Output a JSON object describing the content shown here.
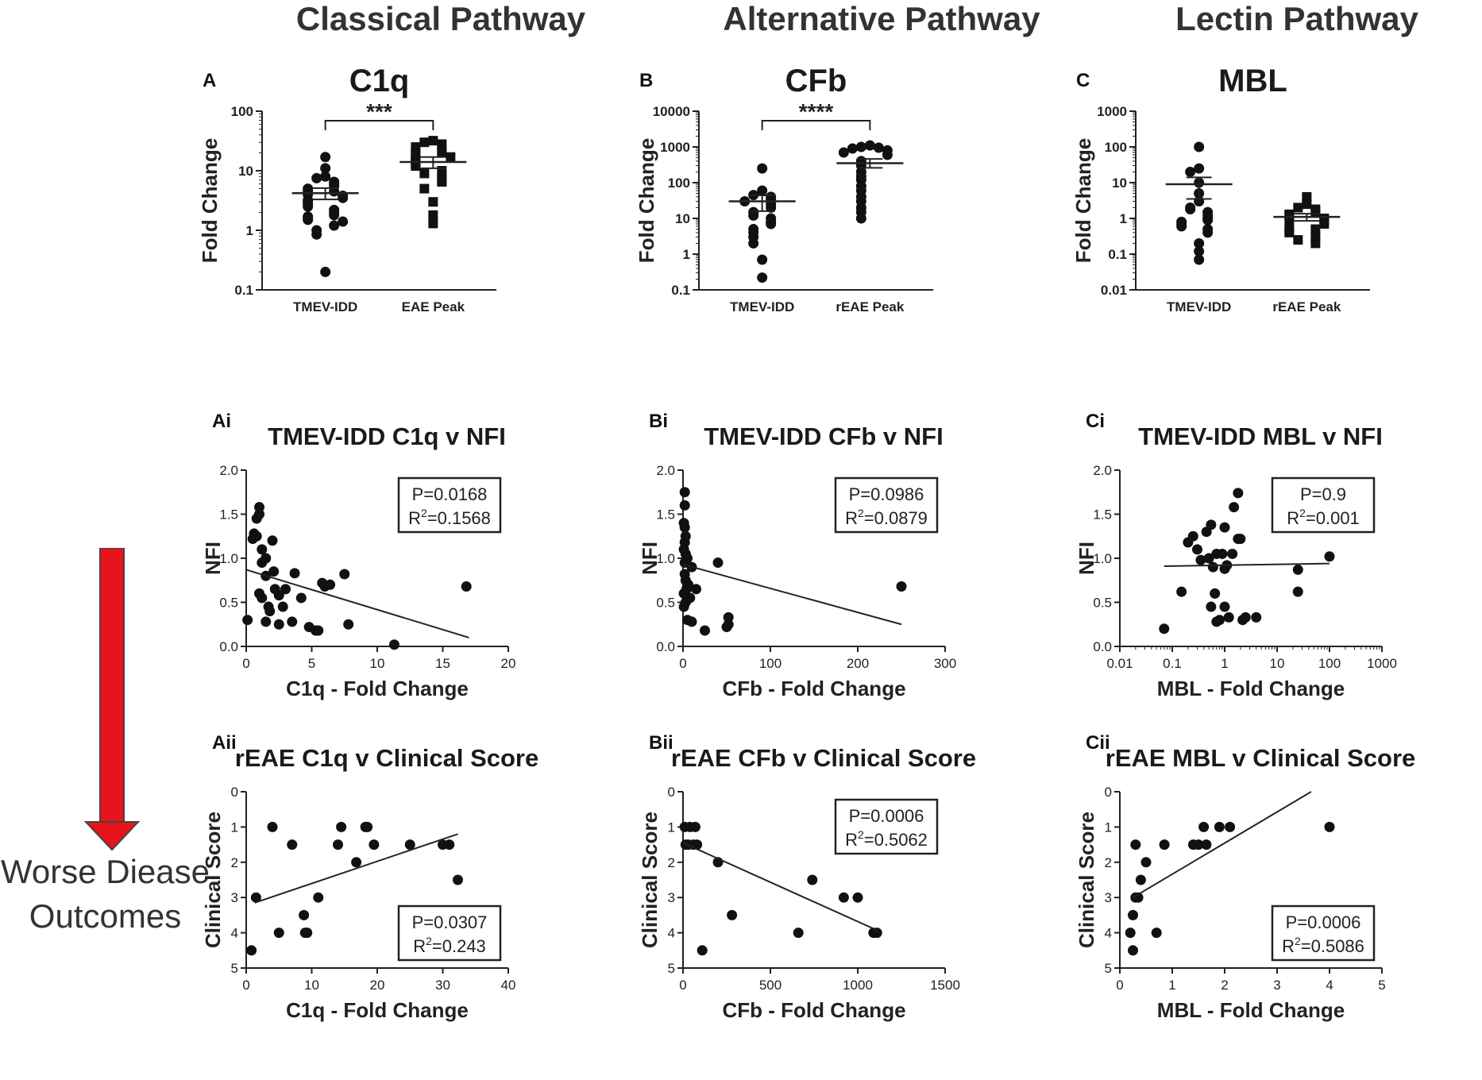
{
  "headers": {
    "classical": "Classical Pathway",
    "alternative": "Alternative Pathway",
    "lectin": "Lectin Pathway"
  },
  "side": {
    "line1": "Worse Diease",
    "line2": "Outcomes",
    "arrow_color": "#e8141b"
  },
  "chart_data": [
    {
      "id": "A",
      "type": "scatter",
      "subtype": "dot-plot-log",
      "panel_label": "A",
      "title": "C1q",
      "ylabel": "Fold Change",
      "xlabel": "",
      "yscale": "log",
      "ylim": [
        0.1,
        100
      ],
      "yticks": [
        "0.1",
        "1",
        "10",
        "100"
      ],
      "categories": [
        "TMEV-IDD",
        "EAE Peak"
      ],
      "significance": "***",
      "groups": [
        {
          "name": "TMEV-IDD",
          "marker": "circle",
          "mean": 4.2,
          "sem_low": 3.3,
          "sem_high": 5.1,
          "values": [
            17,
            11,
            8,
            7.5,
            6.5,
            6,
            5.5,
            5,
            4.5,
            4.5,
            4,
            3.8,
            3.5,
            3.2,
            3,
            2.8,
            2.5,
            2.2,
            2,
            1.8,
            1.7,
            1.6,
            1.5,
            1.4,
            1.2,
            1,
            0.85,
            0.2
          ]
        },
        {
          "name": "EAE Peak",
          "marker": "square",
          "mean": 14,
          "sem_low": 11,
          "sem_high": 17,
          "values": [
            32,
            30,
            28,
            25,
            22,
            20,
            19,
            18,
            17,
            15,
            14,
            13,
            12,
            10,
            9,
            8,
            7,
            6.5,
            5,
            3,
            1.8,
            1.3
          ]
        }
      ]
    },
    {
      "id": "B",
      "type": "scatter",
      "subtype": "dot-plot-log",
      "panel_label": "B",
      "title": "CFb",
      "ylabel": "Fold Change",
      "xlabel": "",
      "yscale": "log",
      "ylim": [
        0.1,
        10000
      ],
      "yticks": [
        "0.1",
        "1",
        "10",
        "100",
        "1000",
        "10000"
      ],
      "categories": [
        "TMEV-IDD",
        "rEAE Peak"
      ],
      "significance": "****",
      "groups": [
        {
          "name": "TMEV-IDD",
          "marker": "circle",
          "mean": 30,
          "sem_low": 16,
          "sem_high": 44,
          "values": [
            250,
            60,
            45,
            40,
            35,
            30,
            25,
            20,
            15,
            12,
            10,
            8,
            7,
            5,
            4,
            3,
            2,
            0.7,
            0.22
          ]
        },
        {
          "name": "rEAE Peak",
          "marker": "circle",
          "mean": 350,
          "sem_low": 260,
          "sem_high": 460,
          "values": [
            1100,
            1000,
            950,
            900,
            800,
            700,
            600,
            400,
            300,
            200,
            150,
            120,
            80,
            60,
            40,
            30,
            20,
            15,
            10
          ]
        }
      ]
    },
    {
      "id": "C",
      "type": "scatter",
      "subtype": "dot-plot-log",
      "panel_label": "C",
      "title": "MBL",
      "ylabel": "Fold Change",
      "xlabel": "",
      "yscale": "log",
      "ylim": [
        0.01,
        1000
      ],
      "yticks": [
        "0.01",
        "0.1",
        "1",
        "10",
        "100",
        "1000"
      ],
      "categories": [
        "TMEV-IDD",
        "rEAE Peak"
      ],
      "significance": "",
      "groups": [
        {
          "name": "TMEV-IDD",
          "marker": "circle",
          "mean": 9,
          "sem_low": 3.5,
          "sem_high": 14,
          "values": [
            100,
            25,
            20,
            10,
            5,
            3,
            2,
            1.8,
            1.5,
            1.2,
            1,
            0.9,
            0.8,
            0.7,
            0.6,
            0.5,
            0.4,
            0.2,
            0.12,
            0.07
          ]
        },
        {
          "name": "rEAE Peak",
          "marker": "square",
          "mean": 1.1,
          "sem_low": 0.85,
          "sem_high": 1.35,
          "values": [
            4,
            2.5,
            2,
            1.8,
            1.5,
            1.3,
            1.2,
            1.1,
            1,
            0.9,
            0.8,
            0.7,
            0.6,
            0.5,
            0.45,
            0.4,
            0.3,
            0.25,
            0.2
          ]
        }
      ]
    },
    {
      "id": "Ai",
      "type": "scatter",
      "panel_label": "Ai",
      "title": "TMEV-IDD C1q v NFI",
      "xlabel": "C1q - Fold Change",
      "ylabel": "NFI",
      "xscale": "linear",
      "xlim": [
        0,
        20
      ],
      "xticks": [
        "0",
        "5",
        "10",
        "15",
        "20"
      ],
      "ylim": [
        0,
        2.0
      ],
      "yticks": [
        "0.0",
        "0.5",
        "1.0",
        "1.5",
        "2.0"
      ],
      "yreversed": false,
      "stat_p": "P=0.0168",
      "stat_r_prefix": "R",
      "stat_r_sup": "2",
      "stat_r_value": "=0.1568",
      "stat_position": "top-right",
      "fit": {
        "x": [
          0,
          17
        ],
        "y": [
          0.87,
          0.1
        ]
      },
      "points": [
        [
          0.5,
          1.22
        ],
        [
          0.6,
          1.28
        ],
        [
          0.8,
          1.25
        ],
        [
          0.8,
          1.45
        ],
        [
          1.0,
          1.58
        ],
        [
          1.0,
          1.5
        ],
        [
          1.2,
          1.1
        ],
        [
          1.2,
          0.95
        ],
        [
          1.0,
          0.6
        ],
        [
          1.2,
          0.55
        ],
        [
          1.5,
          0.8
        ],
        [
          1.5,
          1.0
        ],
        [
          1.7,
          0.45
        ],
        [
          1.8,
          0.4
        ],
        [
          1.5,
          0.28
        ],
        [
          2.0,
          1.2
        ],
        [
          2.1,
          0.85
        ],
        [
          2.2,
          0.65
        ],
        [
          2.5,
          0.58
        ],
        [
          2.5,
          0.25
        ],
        [
          3.0,
          0.65
        ],
        [
          3.5,
          0.28
        ],
        [
          3.7,
          0.83
        ],
        [
          4.2,
          0.55
        ],
        [
          4.8,
          0.22
        ],
        [
          5.3,
          0.18
        ],
        [
          5.5,
          0.18
        ],
        [
          5.8,
          0.72
        ],
        [
          6.0,
          0.68
        ],
        [
          6.4,
          0.7
        ],
        [
          7.5,
          0.82
        ],
        [
          7.8,
          0.25
        ],
        [
          11.3,
          0.02
        ],
        [
          16.8,
          0.68
        ],
        [
          0.1,
          0.3
        ],
        [
          2.8,
          0.45
        ]
      ]
    },
    {
      "id": "Bi",
      "type": "scatter",
      "panel_label": "Bi",
      "title": "TMEV-IDD CFb v NFI",
      "xlabel": "CFb - Fold Change",
      "ylabel": "NFI",
      "xscale": "linear",
      "xlim": [
        0,
        300
      ],
      "xticks": [
        "0",
        "100",
        "200",
        "300"
      ],
      "ylim": [
        0,
        2.0
      ],
      "yticks": [
        "0.0",
        "0.5",
        "1.0",
        "1.5",
        "2.0"
      ],
      "yreversed": false,
      "stat_p": "P=0.0986",
      "stat_r_prefix": "R",
      "stat_r_sup": "2",
      "stat_r_value": "=0.0879",
      "stat_position": "top-right",
      "fit": {
        "x": [
          0,
          250
        ],
        "y": [
          0.93,
          0.25
        ]
      },
      "points": [
        [
          2,
          1.75
        ],
        [
          2,
          1.6
        ],
        [
          1,
          1.4
        ],
        [
          2,
          1.35
        ],
        [
          3,
          1.25
        ],
        [
          2,
          1.18
        ],
        [
          1,
          1.1
        ],
        [
          3,
          1.05
        ],
        [
          5,
          1.0
        ],
        [
          2,
          0.95
        ],
        [
          10,
          0.9
        ],
        [
          2,
          0.82
        ],
        [
          3,
          0.75
        ],
        [
          6,
          0.7
        ],
        [
          4,
          0.65
        ],
        [
          1,
          0.6
        ],
        [
          8,
          0.55
        ],
        [
          5,
          0.3
        ],
        [
          10,
          0.28
        ],
        [
          15,
          0.65
        ],
        [
          25,
          0.18
        ],
        [
          40,
          0.95
        ],
        [
          52,
          0.33
        ],
        [
          52,
          0.25
        ],
        [
          50,
          0.22
        ],
        [
          250,
          0.68
        ],
        [
          3,
          0.5
        ],
        [
          1,
          0.45
        ]
      ]
    },
    {
      "id": "Ci",
      "type": "scatter",
      "panel_label": "Ci",
      "title": "TMEV-IDD MBL v NFI",
      "xlabel": "MBL - Fold Change",
      "ylabel": "NFI",
      "xscale": "log",
      "xlim": [
        0.01,
        1000
      ],
      "xticks": [
        "0.01",
        "0.1",
        "1",
        "10",
        "100",
        "1000"
      ],
      "ylim": [
        0,
        2.0
      ],
      "yticks": [
        "0.0",
        "0.5",
        "1.0",
        "1.5",
        "2.0"
      ],
      "yreversed": false,
      "stat_p": "P=0.9",
      "stat_r_prefix": "R",
      "stat_r_sup": "2",
      "stat_r_value": "=0.001",
      "stat_position": "top-right",
      "fit": {
        "x": [
          0.07,
          100
        ],
        "y": [
          0.91,
          0.94
        ]
      },
      "points": [
        [
          0.07,
          0.2
        ],
        [
          0.15,
          0.62
        ],
        [
          0.2,
          1.18
        ],
        [
          0.25,
          1.25
        ],
        [
          0.3,
          1.1
        ],
        [
          0.35,
          0.98
        ],
        [
          0.45,
          1.3
        ],
        [
          0.5,
          1.0
        ],
        [
          0.55,
          1.38
        ],
        [
          0.6,
          0.9
        ],
        [
          0.65,
          0.6
        ],
        [
          0.7,
          1.05
        ],
        [
          0.7,
          0.28
        ],
        [
          0.8,
          0.3
        ],
        [
          0.9,
          1.05
        ],
        [
          1.0,
          1.35
        ],
        [
          1.0,
          0.88
        ],
        [
          1.0,
          0.45
        ],
        [
          1.1,
          0.92
        ],
        [
          1.2,
          0.33
        ],
        [
          1.4,
          1.05
        ],
        [
          1.5,
          1.58
        ],
        [
          1.8,
          1.22
        ],
        [
          1.8,
          1.74
        ],
        [
          2.0,
          1.22
        ],
        [
          2.2,
          0.3
        ],
        [
          2.5,
          0.33
        ],
        [
          4.0,
          0.33
        ],
        [
          25,
          0.87
        ],
        [
          25,
          0.62
        ],
        [
          100,
          1.02
        ],
        [
          0.55,
          0.45
        ]
      ]
    },
    {
      "id": "Aii",
      "type": "scatter",
      "panel_label": "Aii",
      "title": "rEAE C1q v Clinical Score",
      "xlabel": "C1q - Fold Change",
      "ylabel": "Clinical Score",
      "xscale": "linear",
      "xlim": [
        0,
        40
      ],
      "xticks": [
        "0",
        "10",
        "20",
        "30",
        "40"
      ],
      "ylim": [
        0,
        5
      ],
      "yticks": [
        "0",
        "1",
        "2",
        "3",
        "4",
        "5"
      ],
      "yreversed": true,
      "stat_p": "P=0.0307",
      "stat_r_prefix": "R",
      "stat_r_sup": "2",
      "stat_r_value": "=0.243",
      "stat_position": "bottom-right",
      "fit": {
        "x": [
          1.3,
          32.3
        ],
        "y": [
          3.15,
          1.2
        ]
      },
      "points": [
        [
          0.8,
          4.5
        ],
        [
          1.5,
          3.0
        ],
        [
          4.0,
          1.0
        ],
        [
          5.0,
          4.0
        ],
        [
          7.0,
          1.5
        ],
        [
          8.8,
          3.5
        ],
        [
          9.0,
          4.0
        ],
        [
          9.3,
          4.0
        ],
        [
          11.0,
          3.0
        ],
        [
          14.0,
          1.5
        ],
        [
          14.5,
          1.0
        ],
        [
          16.8,
          2.0
        ],
        [
          18.2,
          1.0
        ],
        [
          18.5,
          1.0
        ],
        [
          19.5,
          1.5
        ],
        [
          25.0,
          1.5
        ],
        [
          30.0,
          1.5
        ],
        [
          31.0,
          1.5
        ],
        [
          32.3,
          2.5
        ]
      ]
    },
    {
      "id": "Bii",
      "type": "scatter",
      "panel_label": "Bii",
      "title": "rEAE CFb v Clinical Score",
      "xlabel": "CFb - Fold Change",
      "ylabel": "Clinical Score",
      "xscale": "linear",
      "xlim": [
        0,
        1500
      ],
      "xticks": [
        "0",
        "500",
        "1000",
        "1500"
      ],
      "ylim": [
        0,
        5
      ],
      "yticks": [
        "0",
        "1",
        "2",
        "3",
        "4",
        "5"
      ],
      "yreversed": true,
      "stat_p": "P=0.0006",
      "stat_r_prefix": "R",
      "stat_r_sup": "2",
      "stat_r_value": "=0.5062",
      "stat_position": "top-right",
      "fit": {
        "x": [
          0,
          1120
        ],
        "y": [
          1.45,
          3.95
        ]
      },
      "points": [
        [
          10,
          1.0
        ],
        [
          15,
          1.5
        ],
        [
          30,
          1.5
        ],
        [
          40,
          1.0
        ],
        [
          60,
          1.5
        ],
        [
          70,
          1.0
        ],
        [
          80,
          1.5
        ],
        [
          110,
          4.5
        ],
        [
          200,
          2.0
        ],
        [
          280,
          3.5
        ],
        [
          660,
          4.0
        ],
        [
          740,
          2.5
        ],
        [
          920,
          3.0
        ],
        [
          1000,
          3.0
        ],
        [
          1090,
          4.0
        ],
        [
          1110,
          4.0
        ]
      ]
    },
    {
      "id": "Cii",
      "type": "scatter",
      "panel_label": "Cii",
      "title": "rEAE MBL v Clinical Score",
      "xlabel": "MBL - Fold Change",
      "ylabel": "Clinical Score",
      "xscale": "linear",
      "xlim": [
        0,
        5
      ],
      "xticks": [
        "0",
        "1",
        "2",
        "3",
        "4",
        "5"
      ],
      "ylim": [
        0,
        5
      ],
      "yticks": [
        "0",
        "1",
        "2",
        "3",
        "4",
        "5"
      ],
      "yreversed": true,
      "stat_p": "P=0.0006",
      "stat_r_prefix": "R",
      "stat_r_sup": "2",
      "stat_r_value": "=0.5086",
      "stat_position": "bottom-right",
      "fit": {
        "x": [
          0.25,
          3.65
        ],
        "y": [
          3.0,
          0.0
        ]
      },
      "points": [
        [
          0.2,
          4.0
        ],
        [
          0.25,
          3.5
        ],
        [
          0.25,
          4.5
        ],
        [
          0.3,
          1.5
        ],
        [
          0.3,
          3.0
        ],
        [
          0.35,
          3.0
        ],
        [
          0.4,
          2.5
        ],
        [
          0.5,
          2.0
        ],
        [
          0.7,
          4.0
        ],
        [
          0.85,
          1.5
        ],
        [
          1.4,
          1.5
        ],
        [
          1.5,
          1.5
        ],
        [
          1.6,
          1.0
        ],
        [
          1.65,
          1.5
        ],
        [
          1.9,
          1.0
        ],
        [
          2.1,
          1.0
        ],
        [
          4.0,
          1.0
        ]
      ]
    }
  ]
}
